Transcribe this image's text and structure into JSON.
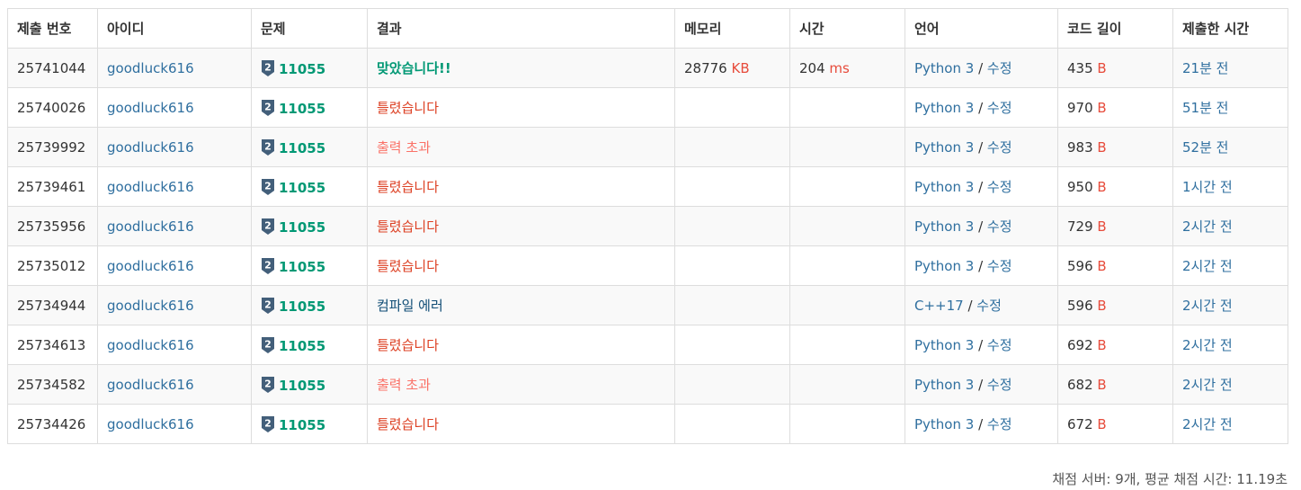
{
  "columns": [
    "제출 번호",
    "아이디",
    "문제",
    "결과",
    "메모리",
    "시간",
    "언어",
    "코드 길이",
    "제출한 시간"
  ],
  "units": {
    "memory": "KB",
    "time": "ms",
    "code": "B"
  },
  "edit_label": "수정",
  "colors": {
    "link": "#2f6f9f",
    "accepted": "#009874",
    "wrong": "#dd4124",
    "output_exceeded": "#fa7268",
    "compile_error": "#0f4c75",
    "unit": "#e74c3c",
    "tier_badge": "#435f7a"
  },
  "rows": [
    {
      "id": "25741044",
      "user": "goodluck616",
      "tier": "2",
      "problem": "11055",
      "result": "맞았습니다!!",
      "result_type": "accepted",
      "memory": "28776",
      "time": "204",
      "lang": "Python 3",
      "code_len": "435",
      "submitted": "21분 전"
    },
    {
      "id": "25740026",
      "user": "goodluck616",
      "tier": "2",
      "problem": "11055",
      "result": "틀렸습니다",
      "result_type": "wrong",
      "memory": "",
      "time": "",
      "lang": "Python 3",
      "code_len": "970",
      "submitted": "51분 전"
    },
    {
      "id": "25739992",
      "user": "goodluck616",
      "tier": "2",
      "problem": "11055",
      "result": "출력 초과",
      "result_type": "output_exceeded",
      "memory": "",
      "time": "",
      "lang": "Python 3",
      "code_len": "983",
      "submitted": "52분 전"
    },
    {
      "id": "25739461",
      "user": "goodluck616",
      "tier": "2",
      "problem": "11055",
      "result": "틀렸습니다",
      "result_type": "wrong",
      "memory": "",
      "time": "",
      "lang": "Python 3",
      "code_len": "950",
      "submitted": "1시간 전"
    },
    {
      "id": "25735956",
      "user": "goodluck616",
      "tier": "2",
      "problem": "11055",
      "result": "틀렸습니다",
      "result_type": "wrong",
      "memory": "",
      "time": "",
      "lang": "Python 3",
      "code_len": "729",
      "submitted": "2시간 전"
    },
    {
      "id": "25735012",
      "user": "goodluck616",
      "tier": "2",
      "problem": "11055",
      "result": "틀렸습니다",
      "result_type": "wrong",
      "memory": "",
      "time": "",
      "lang": "Python 3",
      "code_len": "596",
      "submitted": "2시간 전"
    },
    {
      "id": "25734944",
      "user": "goodluck616",
      "tier": "2",
      "problem": "11055",
      "result": "컴파일 에러",
      "result_type": "compile_error",
      "memory": "",
      "time": "",
      "lang": "C++17",
      "code_len": "596",
      "submitted": "2시간 전"
    },
    {
      "id": "25734613",
      "user": "goodluck616",
      "tier": "2",
      "problem": "11055",
      "result": "틀렸습니다",
      "result_type": "wrong",
      "memory": "",
      "time": "",
      "lang": "Python 3",
      "code_len": "692",
      "submitted": "2시간 전"
    },
    {
      "id": "25734582",
      "user": "goodluck616",
      "tier": "2",
      "problem": "11055",
      "result": "출력 초과",
      "result_type": "output_exceeded",
      "memory": "",
      "time": "",
      "lang": "Python 3",
      "code_len": "682",
      "submitted": "2시간 전"
    },
    {
      "id": "25734426",
      "user": "goodluck616",
      "tier": "2",
      "problem": "11055",
      "result": "틀렸습니다",
      "result_type": "wrong",
      "memory": "",
      "time": "",
      "lang": "Python 3",
      "code_len": "672",
      "submitted": "2시간 전"
    }
  ],
  "footer": {
    "text": "채점 서버: 9개, 평균 채점 시간: 11.19초"
  }
}
